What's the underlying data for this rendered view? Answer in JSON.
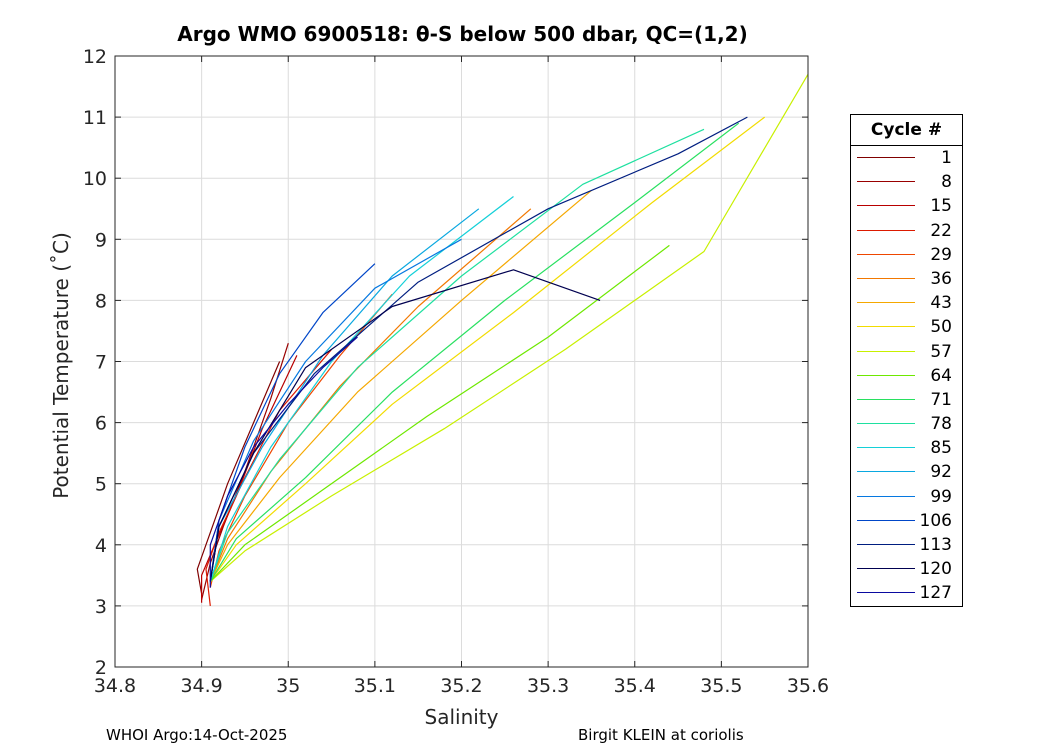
{
  "title": "Argo WMO 6900518: θ-S below 500 dbar,  QC=(1,2)",
  "footer": {
    "left": "WHOI Argo:14-Oct-2025",
    "right": "Birgit KLEIN at coriolis"
  },
  "legend": {
    "title": "Cycle #",
    "items": [
      {
        "label": "1",
        "color": "#800000"
      },
      {
        "label": "8",
        "color": "#990000"
      },
      {
        "label": "15",
        "color": "#b80000"
      },
      {
        "label": "22",
        "color": "#dc1a00"
      },
      {
        "label": "29",
        "color": "#ee4600"
      },
      {
        "label": "36",
        "color": "#f27800"
      },
      {
        "label": "43",
        "color": "#f5a800"
      },
      {
        "label": "50",
        "color": "#f2dc00"
      },
      {
        "label": "57",
        "color": "#c8f000"
      },
      {
        "label": "64",
        "color": "#6ee800"
      },
      {
        "label": "71",
        "color": "#28e060"
      },
      {
        "label": "78",
        "color": "#1ee0a0"
      },
      {
        "label": "85",
        "color": "#14d0d8"
      },
      {
        "label": "92",
        "color": "#0aa8e0"
      },
      {
        "label": "99",
        "color": "#0678e0"
      },
      {
        "label": "106",
        "color": "#0046c8"
      },
      {
        "label": "113",
        "color": "#001e80"
      },
      {
        "label": "120",
        "color": "#000050"
      },
      {
        "label": "127",
        "color": "#0a0aa0"
      }
    ]
  },
  "chart_data": {
    "type": "line",
    "xlabel": "Salinity",
    "ylabel": "Potential Temperature (˚C)",
    "xlim": [
      34.8,
      35.6
    ],
    "ylim": [
      2,
      12
    ],
    "xticks": [
      34.8,
      34.9,
      35,
      35.1,
      35.2,
      35.3,
      35.4,
      35.5,
      35.6
    ],
    "xtick_labels": [
      "34.8",
      "34.9",
      "35",
      "35.1",
      "35.2",
      "35.3",
      "35.4",
      "35.5",
      "35.6"
    ],
    "yticks": [
      2,
      3,
      4,
      5,
      6,
      7,
      8,
      9,
      10,
      11,
      12
    ],
    "ytick_labels": [
      "2",
      "3",
      "4",
      "5",
      "6",
      "7",
      "8",
      "9",
      "10",
      "11",
      "12"
    ],
    "grid": true,
    "legend_position": "outside-right",
    "series": [
      {
        "name": "1",
        "color": "#800000",
        "x": [
          34.9,
          34.895,
          34.91,
          34.93,
          34.96,
          34.99
        ],
        "y": [
          3.2,
          3.6,
          4.2,
          5.0,
          6.0,
          7.0
        ]
      },
      {
        "name": "8",
        "color": "#990000",
        "x": [
          34.9,
          34.91,
          34.925,
          34.95,
          34.98,
          35.0
        ],
        "y": [
          3.1,
          3.7,
          4.3,
          5.2,
          6.4,
          7.3
        ]
      },
      {
        "name": "15",
        "color": "#b80000",
        "x": [
          34.9,
          34.9,
          34.915,
          34.94,
          34.97,
          35.01
        ],
        "y": [
          3.05,
          3.5,
          4.0,
          4.8,
          5.9,
          7.1
        ]
      },
      {
        "name": "22",
        "color": "#dc1a00",
        "x": [
          34.91,
          34.905,
          34.92,
          34.95,
          34.99,
          35.05
        ],
        "y": [
          3.0,
          3.6,
          4.2,
          5.1,
          6.2,
          7.2
        ]
      },
      {
        "name": "29",
        "color": "#ee4600",
        "x": [
          34.91,
          34.92,
          34.95,
          35.0,
          35.06,
          35.12
        ],
        "y": [
          3.3,
          3.9,
          4.8,
          6.0,
          7.1,
          8.1
        ]
      },
      {
        "name": "36",
        "color": "#f27800",
        "x": [
          34.91,
          34.93,
          34.98,
          35.06,
          35.15,
          35.28
        ],
        "y": [
          3.4,
          4.1,
          5.2,
          6.6,
          7.9,
          9.5
        ]
      },
      {
        "name": "43",
        "color": "#f5a800",
        "x": [
          34.91,
          34.93,
          34.99,
          35.08,
          35.2,
          35.35
        ],
        "y": [
          3.4,
          4.0,
          5.1,
          6.5,
          8.0,
          9.8
        ]
      },
      {
        "name": "50",
        "color": "#f2dc00",
        "x": [
          34.91,
          34.94,
          35.02,
          35.12,
          35.26,
          35.42,
          35.55
        ],
        "y": [
          3.4,
          4.0,
          5.0,
          6.3,
          7.8,
          9.6,
          11.0
        ]
      },
      {
        "name": "57",
        "color": "#c8f000",
        "x": [
          34.91,
          34.95,
          35.05,
          35.18,
          35.32,
          35.48,
          35.6
        ],
        "y": [
          3.4,
          3.9,
          4.8,
          5.9,
          7.2,
          8.8,
          11.7
        ]
      },
      {
        "name": "64",
        "color": "#6ee800",
        "x": [
          34.91,
          34.95,
          35.04,
          35.16,
          35.3,
          35.44
        ],
        "y": [
          3.4,
          4.0,
          4.9,
          6.1,
          7.4,
          8.9
        ]
      },
      {
        "name": "71",
        "color": "#28e060",
        "x": [
          34.91,
          34.94,
          35.02,
          35.12,
          35.25,
          35.4,
          35.52
        ],
        "y": [
          3.4,
          4.1,
          5.1,
          6.5,
          8.0,
          9.6,
          10.9
        ]
      },
      {
        "name": "78",
        "color": "#1ee0a0",
        "x": [
          34.91,
          34.93,
          34.99,
          35.08,
          35.2,
          35.34,
          35.48
        ],
        "y": [
          3.4,
          4.2,
          5.4,
          6.9,
          8.4,
          9.9,
          10.8
        ]
      },
      {
        "name": "85",
        "color": "#14d0d8",
        "x": [
          34.91,
          34.93,
          34.98,
          35.05,
          35.14,
          35.26
        ],
        "y": [
          3.4,
          4.3,
          5.6,
          7.0,
          8.4,
          9.7
        ]
      },
      {
        "name": "92",
        "color": "#0aa8e0",
        "x": [
          34.91,
          34.92,
          34.97,
          35.04,
          35.12,
          35.22
        ],
        "y": [
          3.4,
          4.3,
          5.6,
          7.1,
          8.4,
          9.5
        ]
      },
      {
        "name": "99",
        "color": "#0678e0",
        "x": [
          34.91,
          34.92,
          34.96,
          35.02,
          35.1,
          35.2
        ],
        "y": [
          3.4,
          4.4,
          5.7,
          7.0,
          8.2,
          9.0
        ]
      },
      {
        "name": "106",
        "color": "#0046c8",
        "x": [
          34.91,
          34.92,
          34.95,
          34.99,
          35.04,
          35.1
        ],
        "y": [
          3.4,
          4.4,
          5.6,
          6.8,
          7.8,
          8.6
        ]
      },
      {
        "name": "113",
        "color": "#001e80",
        "x": [
          34.91,
          34.92,
          34.96,
          35.03,
          35.15,
          35.3,
          35.45,
          35.53
        ],
        "y": [
          3.4,
          4.3,
          5.5,
          6.8,
          8.3,
          9.5,
          10.4,
          11.0
        ]
      },
      {
        "name": "120",
        "color": "#000050",
        "x": [
          34.91,
          34.92,
          34.96,
          35.02,
          35.12,
          35.26,
          35.36
        ],
        "y": [
          3.4,
          4.3,
          5.5,
          6.9,
          7.9,
          8.5,
          8.0
        ]
      },
      {
        "name": "127",
        "color": "#0a0aa0",
        "x": [
          34.91,
          34.91,
          34.93,
          34.96,
          35.0,
          35.04,
          35.08
        ],
        "y": [
          3.3,
          4.0,
          4.8,
          5.6,
          6.3,
          6.9,
          7.4
        ]
      }
    ]
  }
}
